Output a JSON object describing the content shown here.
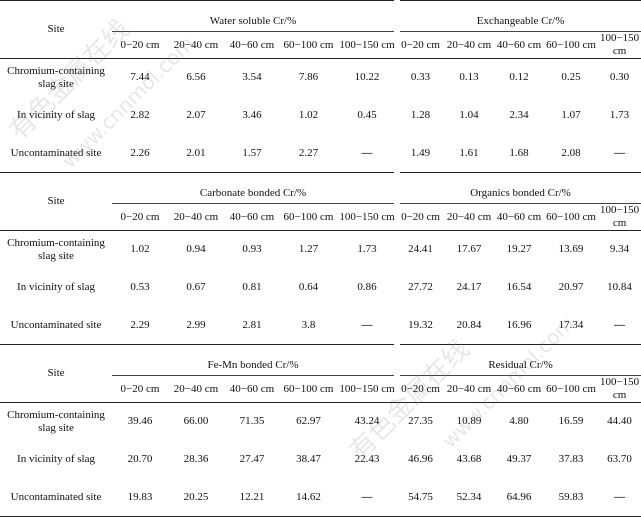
{
  "header": {
    "site_label": "Site",
    "depths": [
      "0−20 cm",
      "20−40 cm",
      "40−60 cm",
      "60−100 cm",
      "100−150 cm"
    ]
  },
  "row_labels": [
    "Chromium-containing slag site",
    "In vicinity of slag",
    "Uncontaminated site"
  ],
  "sections": [
    {
      "left_title": "Water soluble Cr/%",
      "right_title": "Exchangeable Cr/%",
      "rows": [
        {
          "left": [
            "7.44",
            "6.56",
            "3.54",
            "7.86",
            "10.22"
          ],
          "right": [
            "0.33",
            "0.13",
            "0.12",
            "0.25",
            "0.30"
          ]
        },
        {
          "left": [
            "2.82",
            "2.07",
            "3.46",
            "1.02",
            "0.45"
          ],
          "right": [
            "1.28",
            "1.04",
            "2.34",
            "1.07",
            "1.73"
          ]
        },
        {
          "left": [
            "2.26",
            "2.01",
            "1.57",
            "2.27",
            "—"
          ],
          "right": [
            "1.49",
            "1.61",
            "1.68",
            "2.08",
            "—"
          ]
        }
      ]
    },
    {
      "left_title": "Carbonate bonded Cr/%",
      "right_title": "Organics bonded Cr/%",
      "rows": [
        {
          "left": [
            "1.02",
            "0.94",
            "0.93",
            "1.27",
            "1.73"
          ],
          "right": [
            "24.41",
            "17.67",
            "19.27",
            "13.69",
            "9.34"
          ]
        },
        {
          "left": [
            "0.53",
            "0.67",
            "0.81",
            "0.64",
            "0.86"
          ],
          "right": [
            "27.72",
            "24.17",
            "16.54",
            "20.97",
            "10.84"
          ]
        },
        {
          "left": [
            "2.29",
            "2.99",
            "2.81",
            "3.8",
            "—"
          ],
          "right": [
            "19.32",
            "20.84",
            "16.96",
            "17.34",
            "—"
          ]
        }
      ]
    },
    {
      "left_title": "Fe-Mn bonded Cr/%",
      "right_title": "Residual Cr/%",
      "rows": [
        {
          "left": [
            "39.46",
            "66.00",
            "71.35",
            "62.97",
            "43.24"
          ],
          "right": [
            "27.35",
            "10.89",
            "4.80",
            "16.59",
            "44.40"
          ]
        },
        {
          "left": [
            "20.70",
            "28.36",
            "27.47",
            "38.47",
            "22.43"
          ],
          "right": [
            "46.96",
            "43.68",
            "49.37",
            "37.83",
            "63.70"
          ]
        },
        {
          "left": [
            "19.83",
            "20.25",
            "12.21",
            "14.62",
            "—"
          ],
          "right": [
            "54.75",
            "52.34",
            "64.96",
            "59.83",
            "—"
          ]
        }
      ]
    }
  ],
  "watermark": {
    "text_cn": "有色金属在线",
    "text_url": "www.cnnmol.com"
  }
}
